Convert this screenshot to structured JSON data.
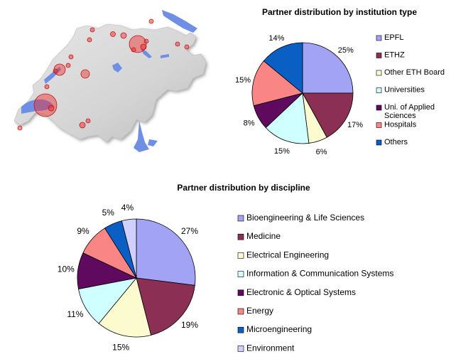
{
  "chart_data": [
    {
      "type": "pie",
      "title": "Partner distribution by institution type",
      "categories": [
        "EPFL",
        "ETHZ",
        "Other ETH Board",
        "Universities",
        "Uni. of Applied Sciences",
        "Hospitals",
        "Others"
      ],
      "values": [
        25,
        17,
        6,
        15,
        8,
        15,
        14
      ],
      "labels": [
        "25%",
        "17%",
        "6%",
        "15%",
        "8%",
        "15%",
        "14%"
      ],
      "colors": [
        "#a3a3f5",
        "#8b2f55",
        "#fbfbcf",
        "#cfffff",
        "#5f0a5f",
        "#f98585",
        "#0a5fc5"
      ],
      "legend_position": "right"
    },
    {
      "type": "pie",
      "title": "Partner distribution by discipline",
      "categories": [
        "Bioengineering & Life Sciences",
        "Medicine",
        "Electrical Engineering",
        "Information & Communication Systems",
        "Electronic & Optical Systems",
        "Energy",
        "Microengineering",
        "Environment"
      ],
      "values": [
        27,
        19,
        15,
        11,
        10,
        9,
        5,
        4
      ],
      "labels": [
        "27%",
        "19%",
        "15%",
        "11%",
        "10%",
        "9%",
        "5%",
        "4%"
      ],
      "colors": [
        "#a3a3f5",
        "#8b2f55",
        "#fbfbcf",
        "#cfffff",
        "#5f0a5f",
        "#f98585",
        "#0a5fc5",
        "#d0d0ff"
      ],
      "legend_position": "right"
    }
  ],
  "map": {
    "land_color": "#dadada",
    "lake_color": "#6f8fe5",
    "marker_color": "#ee2a2a"
  }
}
